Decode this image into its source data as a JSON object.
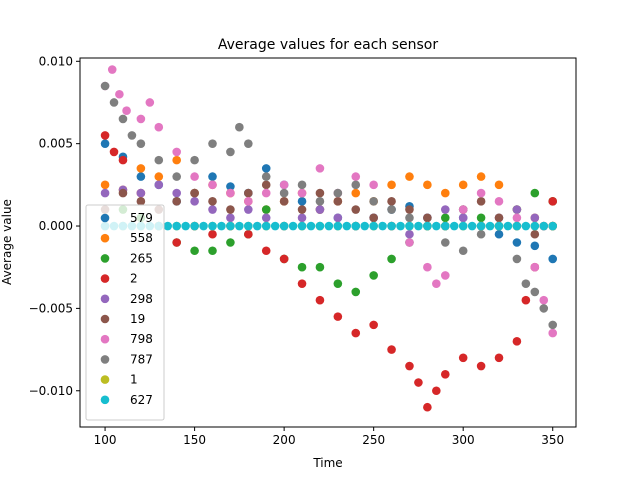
{
  "chart_data": {
    "type": "scatter",
    "title": "Average values for each sensor",
    "xlabel": "Time",
    "ylabel": "Average value",
    "xlim": [
      86,
      363
    ],
    "ylim": [
      -0.0122,
      0.0102
    ],
    "xticks": [
      100,
      150,
      200,
      250,
      300,
      350
    ],
    "yticks": [
      -0.01,
      -0.005,
      0.0,
      0.005,
      0.01
    ],
    "ytick_labels": [
      "−0.010",
      "−0.005",
      "0.000",
      "0.005",
      "0.010"
    ],
    "legend_position": "lower-left",
    "grid": false,
    "series": [
      {
        "name": "579",
        "color": "#1f77b4",
        "points": [
          [
            100,
            0.005
          ],
          [
            110,
            0.0042
          ],
          [
            120,
            0.003
          ],
          [
            130,
            0.0025
          ],
          [
            140,
            0.0015
          ],
          [
            150,
            0.002
          ],
          [
            160,
            0.003
          ],
          [
            170,
            0.0024
          ],
          [
            180,
            0.002
          ],
          [
            190,
            0.0035
          ],
          [
            200,
            0.0025
          ],
          [
            210,
            0.0015
          ],
          [
            220,
            0.001
          ],
          [
            230,
            0.0005
          ],
          [
            240,
            0.0
          ],
          [
            250,
            0.0005
          ],
          [
            260,
            0.001
          ],
          [
            270,
            0.0012
          ],
          [
            280,
            0.0005
          ],
          [
            290,
            0.0
          ],
          [
            300,
            0.0005
          ],
          [
            310,
            0.0
          ],
          [
            320,
            -0.0005
          ],
          [
            330,
            -0.001
          ],
          [
            340,
            -0.0012
          ],
          [
            350,
            -0.002
          ]
        ]
      },
      {
        "name": "558",
        "color": "#ff7f0e",
        "points": [
          [
            100,
            0.0025
          ],
          [
            110,
            0.0022
          ],
          [
            120,
            0.0035
          ],
          [
            130,
            0.003
          ],
          [
            140,
            0.004
          ],
          [
            150,
            0.002
          ],
          [
            160,
            0.0025
          ],
          [
            170,
            0.002
          ],
          [
            180,
            0.0015
          ],
          [
            190,
            0.001
          ],
          [
            200,
            0.0015
          ],
          [
            210,
            0.002
          ],
          [
            220,
            0.001
          ],
          [
            230,
            0.0015
          ],
          [
            240,
            0.002
          ],
          [
            250,
            0.0015
          ],
          [
            260,
            0.0025
          ],
          [
            270,
            0.003
          ],
          [
            280,
            0.0025
          ],
          [
            290,
            0.002
          ],
          [
            300,
            0.0025
          ],
          [
            310,
            0.003
          ],
          [
            320,
            0.0025
          ],
          [
            330,
            0.001
          ],
          [
            340,
            0.0005
          ],
          [
            350,
            0.0
          ]
        ]
      },
      {
        "name": "265",
        "color": "#2ca02c",
        "points": [
          [
            100,
            0.0005
          ],
          [
            110,
            0.001
          ],
          [
            120,
            0.0005
          ],
          [
            130,
            0.0
          ],
          [
            140,
            -0.001
          ],
          [
            150,
            -0.0015
          ],
          [
            160,
            -0.0015
          ],
          [
            170,
            -0.001
          ],
          [
            180,
            -0.0005
          ],
          [
            190,
            0.001
          ],
          [
            200,
            -0.002
          ],
          [
            210,
            -0.0025
          ],
          [
            220,
            -0.0025
          ],
          [
            230,
            -0.0035
          ],
          [
            240,
            -0.004
          ],
          [
            250,
            -0.003
          ],
          [
            260,
            -0.002
          ],
          [
            270,
            -0.001
          ],
          [
            280,
            0.0
          ],
          [
            290,
            0.0005
          ],
          [
            300,
            0.001
          ],
          [
            310,
            0.0005
          ],
          [
            320,
            0.0
          ],
          [
            330,
            0.001
          ],
          [
            340,
            0.002
          ],
          [
            350,
            0.0015
          ]
        ]
      },
      {
        "name": "2",
        "color": "#d62728",
        "points": [
          [
            100,
            0.0055
          ],
          [
            105,
            0.0045
          ],
          [
            110,
            0.004
          ],
          [
            120,
            0.002
          ],
          [
            130,
            0.0
          ],
          [
            140,
            -0.001
          ],
          [
            150,
            0.0
          ],
          [
            160,
            -0.0005
          ],
          [
            170,
            0.0
          ],
          [
            180,
            -0.0005
          ],
          [
            190,
            -0.0015
          ],
          [
            200,
            -0.002
          ],
          [
            210,
            -0.0035
          ],
          [
            220,
            -0.0045
          ],
          [
            230,
            -0.0055
          ],
          [
            240,
            -0.0065
          ],
          [
            250,
            -0.006
          ],
          [
            260,
            -0.0075
          ],
          [
            270,
            -0.0085
          ],
          [
            275,
            -0.0095
          ],
          [
            280,
            -0.011
          ],
          [
            285,
            -0.01
          ],
          [
            290,
            -0.009
          ],
          [
            300,
            -0.008
          ],
          [
            310,
            -0.0085
          ],
          [
            320,
            -0.008
          ],
          [
            330,
            -0.007
          ],
          [
            335,
            -0.0045
          ],
          [
            340,
            -0.0025
          ],
          [
            345,
            0.0
          ],
          [
            350,
            0.0015
          ]
        ]
      },
      {
        "name": "298",
        "color": "#9467bd",
        "points": [
          [
            100,
            0.002
          ],
          [
            110,
            0.0022
          ],
          [
            120,
            0.002
          ],
          [
            130,
            0.0025
          ],
          [
            140,
            0.002
          ],
          [
            150,
            0.0015
          ],
          [
            160,
            0.001
          ],
          [
            170,
            0.0005
          ],
          [
            180,
            0.001
          ],
          [
            190,
            0.0005
          ],
          [
            200,
            0.0
          ],
          [
            210,
            0.0005
          ],
          [
            220,
            0.001
          ],
          [
            230,
            0.0005
          ],
          [
            240,
            0.0
          ],
          [
            250,
            0.0005
          ],
          [
            260,
            0.0
          ],
          [
            270,
            -0.0005
          ],
          [
            280,
            0.0005
          ],
          [
            290,
            0.001
          ],
          [
            300,
            0.0005
          ],
          [
            310,
            0.0
          ],
          [
            320,
            0.0005
          ],
          [
            330,
            0.001
          ],
          [
            340,
            0.0005
          ],
          [
            350,
            0.0
          ]
        ]
      },
      {
        "name": "19",
        "color": "#8c564b",
        "points": [
          [
            100,
            0.001
          ],
          [
            110,
            0.002
          ],
          [
            120,
            0.0015
          ],
          [
            130,
            0.001
          ],
          [
            140,
            0.0015
          ],
          [
            150,
            0.002
          ],
          [
            160,
            0.0015
          ],
          [
            170,
            0.001
          ],
          [
            180,
            0.002
          ],
          [
            190,
            0.0025
          ],
          [
            200,
            0.0015
          ],
          [
            210,
            0.001
          ],
          [
            220,
            0.002
          ],
          [
            230,
            0.0015
          ],
          [
            240,
            0.001
          ],
          [
            250,
            0.0005
          ],
          [
            260,
            0.0015
          ],
          [
            270,
            0.001
          ],
          [
            280,
            0.0005
          ],
          [
            290,
            0.0
          ],
          [
            300,
            0.001
          ],
          [
            310,
            0.0015
          ],
          [
            320,
            0.0005
          ],
          [
            330,
            0.0
          ],
          [
            340,
            -0.0005
          ],
          [
            350,
            0.0
          ]
        ]
      },
      {
        "name": "798",
        "color": "#e377c2",
        "points": [
          [
            100,
            0.0085
          ],
          [
            104,
            0.0095
          ],
          [
            108,
            0.008
          ],
          [
            112,
            0.007
          ],
          [
            120,
            0.0065
          ],
          [
            125,
            0.0075
          ],
          [
            130,
            0.006
          ],
          [
            140,
            0.0045
          ],
          [
            150,
            0.003
          ],
          [
            160,
            0.0025
          ],
          [
            170,
            0.002
          ],
          [
            180,
            0.0015
          ],
          [
            190,
            0.002
          ],
          [
            200,
            0.0025
          ],
          [
            210,
            0.002
          ],
          [
            220,
            0.0035
          ],
          [
            230,
            0.002
          ],
          [
            240,
            0.003
          ],
          [
            250,
            0.0025
          ],
          [
            260,
            0.0
          ],
          [
            270,
            -0.001
          ],
          [
            280,
            -0.0025
          ],
          [
            285,
            -0.0035
          ],
          [
            290,
            -0.003
          ],
          [
            300,
            0.001
          ],
          [
            310,
            0.002
          ],
          [
            320,
            0.0015
          ],
          [
            330,
            0.0005
          ],
          [
            340,
            -0.0025
          ],
          [
            345,
            -0.0045
          ],
          [
            350,
            -0.0065
          ]
        ]
      },
      {
        "name": "787",
        "color": "#7f7f7f",
        "points": [
          [
            100,
            0.0085
          ],
          [
            105,
            0.0075
          ],
          [
            110,
            0.0065
          ],
          [
            115,
            0.0055
          ],
          [
            120,
            0.005
          ],
          [
            130,
            0.004
          ],
          [
            140,
            0.003
          ],
          [
            150,
            0.004
          ],
          [
            160,
            0.005
          ],
          [
            170,
            0.0045
          ],
          [
            175,
            0.006
          ],
          [
            180,
            0.005
          ],
          [
            190,
            0.003
          ],
          [
            200,
            0.002
          ],
          [
            210,
            0.0025
          ],
          [
            220,
            0.0015
          ],
          [
            230,
            0.002
          ],
          [
            240,
            0.0025
          ],
          [
            250,
            0.0015
          ],
          [
            260,
            0.001
          ],
          [
            270,
            0.0005
          ],
          [
            280,
            0.0
          ],
          [
            290,
            -0.001
          ],
          [
            300,
            -0.0015
          ],
          [
            310,
            -0.0005
          ],
          [
            320,
            0.0
          ],
          [
            330,
            -0.002
          ],
          [
            335,
            -0.0035
          ],
          [
            340,
            -0.004
          ],
          [
            345,
            -0.005
          ],
          [
            350,
            -0.006
          ]
        ]
      },
      {
        "name": "1",
        "color": "#bcbd22",
        "points": [
          [
            100,
            0.0
          ],
          [
            110,
            0.0
          ],
          [
            120,
            0.0
          ],
          [
            130,
            0.0
          ],
          [
            140,
            0.0
          ],
          [
            150,
            0.0
          ],
          [
            160,
            0.0
          ],
          [
            170,
            0.0
          ],
          [
            180,
            0.0
          ],
          [
            190,
            0.0
          ],
          [
            200,
            0.0
          ],
          [
            210,
            0.0
          ],
          [
            220,
            0.0
          ],
          [
            230,
            0.0
          ],
          [
            240,
            0.0
          ],
          [
            250,
            0.0
          ],
          [
            260,
            0.0
          ],
          [
            270,
            0.0
          ],
          [
            280,
            0.0
          ],
          [
            290,
            0.0
          ],
          [
            300,
            0.0
          ],
          [
            310,
            0.0
          ],
          [
            320,
            0.0
          ],
          [
            330,
            0.0
          ],
          [
            340,
            0.0
          ],
          [
            350,
            0.0
          ]
        ]
      },
      {
        "name": "627",
        "color": "#17becf",
        "points": [
          [
            100,
            0.0
          ],
          [
            105,
            0.0
          ],
          [
            110,
            0.0
          ],
          [
            115,
            0.0
          ],
          [
            120,
            0.0
          ],
          [
            125,
            0.0
          ],
          [
            130,
            0.0
          ],
          [
            135,
            0.0
          ],
          [
            140,
            0.0
          ],
          [
            145,
            0.0
          ],
          [
            150,
            0.0
          ],
          [
            155,
            0.0
          ],
          [
            160,
            0.0
          ],
          [
            165,
            0.0
          ],
          [
            170,
            0.0
          ],
          [
            175,
            0.0
          ],
          [
            180,
            0.0
          ],
          [
            185,
            0.0
          ],
          [
            190,
            0.0
          ],
          [
            195,
            0.0
          ],
          [
            200,
            0.0
          ],
          [
            205,
            0.0
          ],
          [
            210,
            0.0
          ],
          [
            215,
            0.0
          ],
          [
            220,
            0.0
          ],
          [
            225,
            0.0
          ],
          [
            230,
            0.0
          ],
          [
            235,
            0.0
          ],
          [
            240,
            0.0
          ],
          [
            245,
            0.0
          ],
          [
            250,
            0.0
          ],
          [
            255,
            0.0
          ],
          [
            260,
            0.0
          ],
          [
            265,
            0.0
          ],
          [
            270,
            0.0
          ],
          [
            275,
            0.0
          ],
          [
            280,
            0.0
          ],
          [
            285,
            0.0
          ],
          [
            290,
            0.0
          ],
          [
            295,
            0.0
          ],
          [
            300,
            0.0
          ],
          [
            305,
            0.0
          ],
          [
            310,
            0.0
          ],
          [
            315,
            0.0
          ],
          [
            320,
            0.0
          ],
          [
            325,
            0.0
          ],
          [
            330,
            0.0
          ],
          [
            335,
            0.0
          ],
          [
            340,
            0.0
          ],
          [
            345,
            0.0
          ],
          [
            350,
            0.0
          ]
        ]
      }
    ]
  }
}
